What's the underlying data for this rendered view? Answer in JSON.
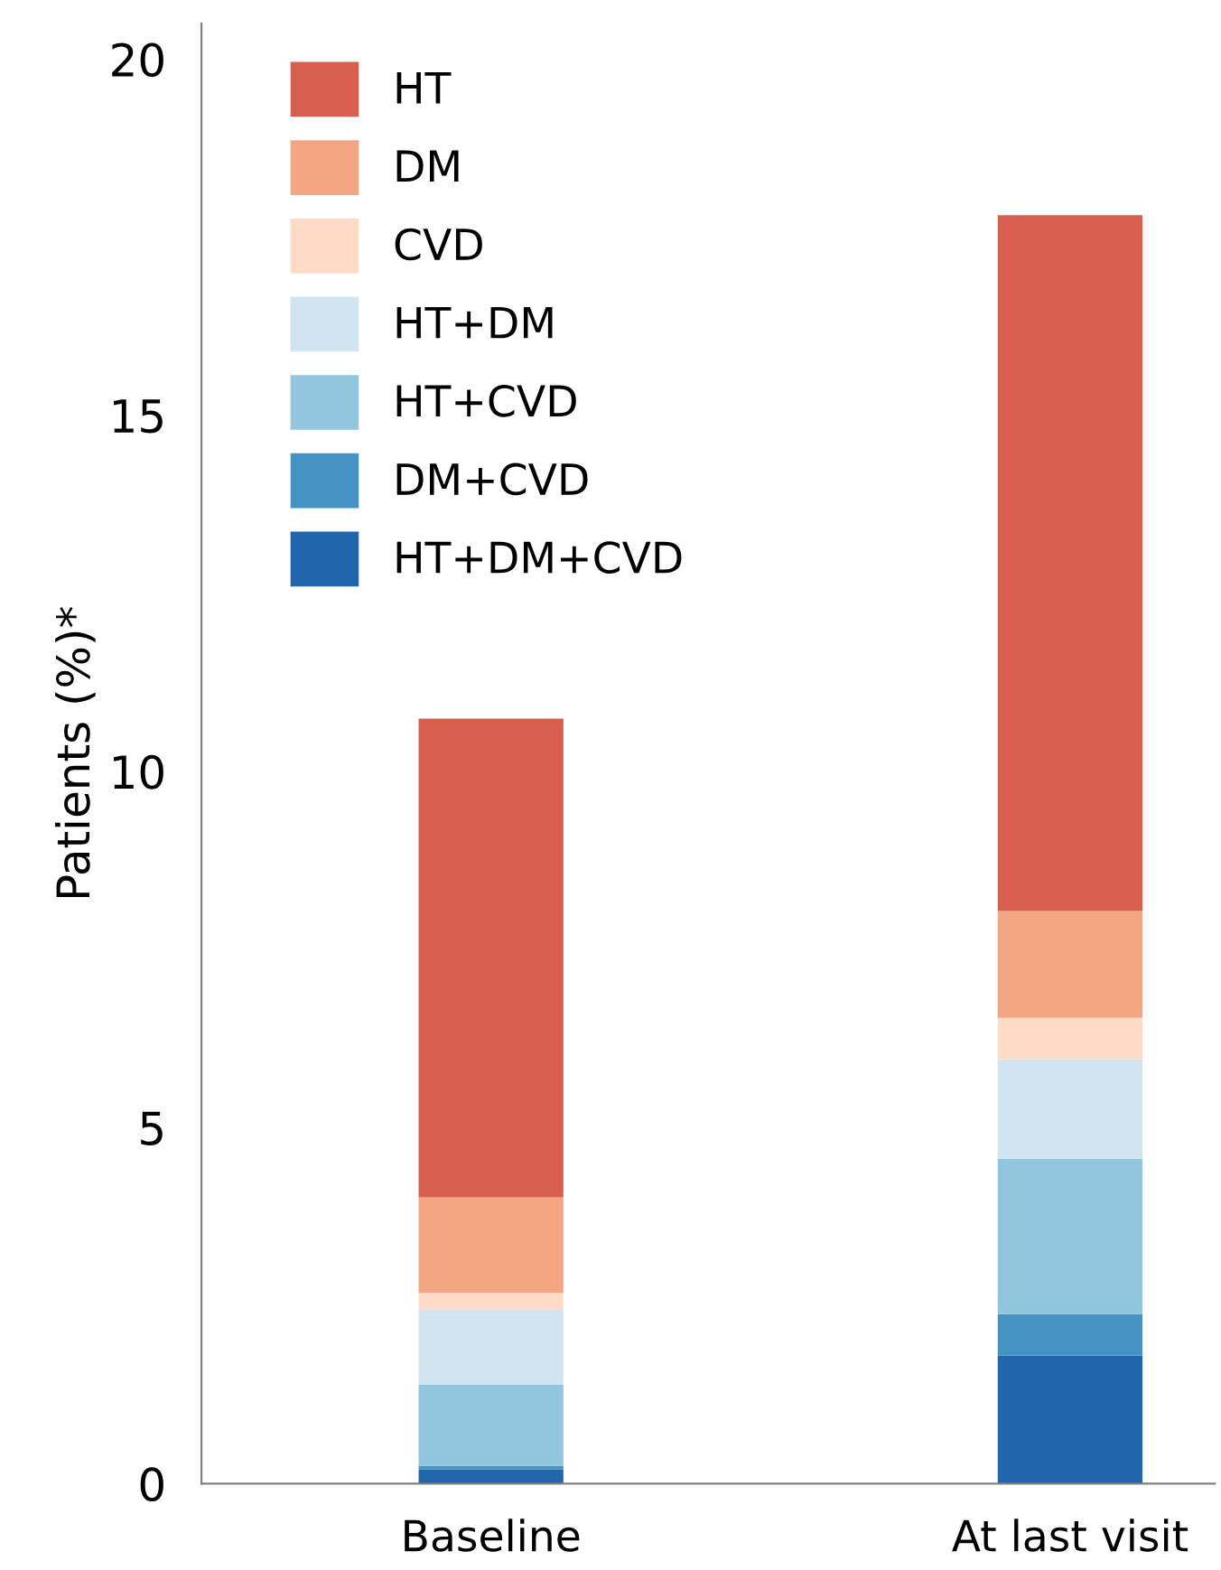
{
  "chart_data": {
    "type": "bar",
    "stacked": true,
    "ylabel": "Patients (%)*",
    "categories": [
      "Baseline",
      "At last visit"
    ],
    "series": [
      {
        "name": "HT+DM+CVD",
        "color": "#2166ac",
        "values": [
          0.2,
          1.8
        ]
      },
      {
        "name": "DM+CVD",
        "color": "#4393c3",
        "values": [
          0.05,
          0.58
        ]
      },
      {
        "name": "HT+CVD",
        "color": "#92c5de",
        "values": [
          1.14,
          2.18
        ]
      },
      {
        "name": "HT+DM",
        "color": "#d1e5f0",
        "values": [
          1.06,
          1.4
        ]
      },
      {
        "name": "CVD",
        "color": "#fddbc7",
        "values": [
          0.23,
          0.58
        ]
      },
      {
        "name": "DM",
        "color": "#f4a582",
        "values": [
          1.34,
          1.5
        ]
      },
      {
        "name": "HT",
        "color": "#d6604d",
        "values": [
          6.72,
          9.77
        ]
      }
    ],
    "ylim": [
      0,
      20.5
    ],
    "yticks": [
      0,
      5,
      10,
      15,
      20
    ],
    "grid": false,
    "legend": "top left"
  }
}
